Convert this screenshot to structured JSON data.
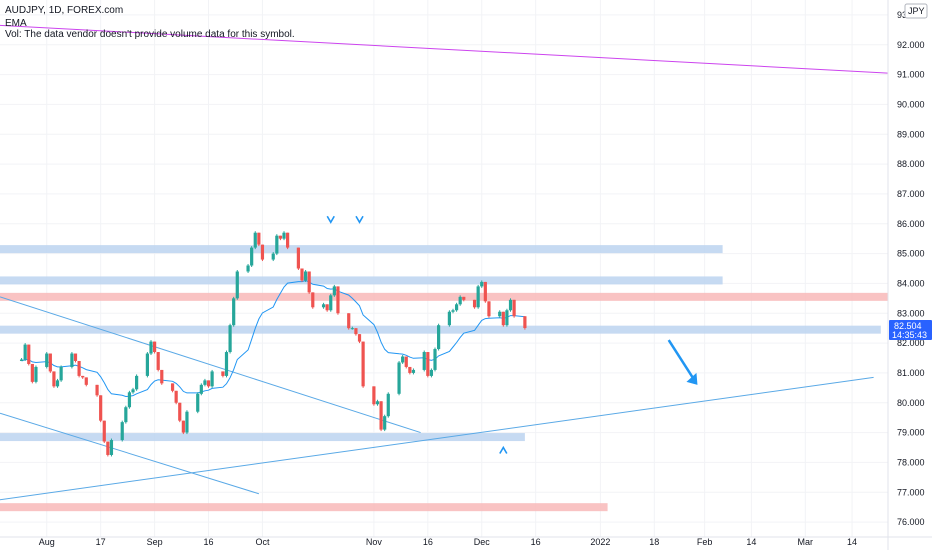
{
  "header": {
    "symbol_line": "AUDJPY, 1D, FOREX.com",
    "indicator": "EMA",
    "volume_note": "Vol: The data vendor doesn't provide volume data for this symbol."
  },
  "price_axis": {
    "currency": "JPY",
    "last_price": "82.504",
    "countdown": "14:35:43"
  },
  "colors": {
    "up": "#26a69a",
    "down": "#ef5350",
    "ema": "#2196f3",
    "trendline": "#5aa9e6",
    "purple_line": "#cc44ee",
    "support_zone": "#bcd4f0",
    "resistance_zone": "#f8b8b8",
    "price_tag": "#2962ff"
  },
  "chart_data": {
    "type": "candlestick",
    "title": "AUDJPY, 1D, FOREX.com",
    "xlabel": "",
    "ylabel": "",
    "ylim": [
      75.5,
      93.5
    ],
    "x_range": [
      "2021-07-20",
      "2022-03-24"
    ],
    "y_ticks": [
      "76.000",
      "77.000",
      "78.000",
      "79.000",
      "80.000",
      "81.000",
      "82.000",
      "83.000",
      "84.000",
      "85.000",
      "86.000",
      "87.000",
      "88.000",
      "89.000",
      "90.000",
      "91.000",
      "92.000",
      "93.000"
    ],
    "x_ticks": [
      {
        "label": "Aug",
        "date": "2021-08-02"
      },
      {
        "label": "17",
        "date": "2021-08-17"
      },
      {
        "label": "Sep",
        "date": "2021-09-01"
      },
      {
        "label": "16",
        "date": "2021-09-16"
      },
      {
        "label": "Oct",
        "date": "2021-10-01"
      },
      {
        "label": "Nov",
        "date": "2021-11-01"
      },
      {
        "label": "16",
        "date": "2021-11-16"
      },
      {
        "label": "Dec",
        "date": "2021-12-01"
      },
      {
        "label": "16",
        "date": "2021-12-16"
      },
      {
        "label": "2022",
        "date": "2022-01-03"
      },
      {
        "label": "18",
        "date": "2022-01-18"
      },
      {
        "label": "Feb",
        "date": "2022-02-01"
      },
      {
        "label": "14",
        "date": "2022-02-14"
      },
      {
        "label": "Mar",
        "date": "2022-03-01"
      },
      {
        "label": "14",
        "date": "2022-03-14"
      }
    ],
    "closes": [
      81.45,
      81.95,
      81.3,
      80.7,
      81.2,
      81.65,
      81.05,
      80.55,
      80.75,
      81.2,
      81.65,
      81.4,
      80.9,
      80.85,
      80.6,
      80.25,
      79.4,
      78.7,
      78.25,
      78.75,
      79.35,
      79.85,
      80.35,
      80.45,
      80.9,
      81.65,
      82.05,
      81.7,
      81.1,
      80.65,
      80.4,
      80.0,
      79.4,
      79.0,
      79.7,
      80.3,
      80.6,
      80.75,
      80.55,
      81.05,
      80.9,
      81.7,
      82.6,
      83.5,
      84.4,
      84.6,
      85.2,
      85.7,
      85.3,
      84.8,
      85.0,
      85.6,
      85.5,
      85.7,
      85.2,
      84.5,
      84.1,
      84.4,
      83.7,
      83.2,
      83.3,
      83.1,
      83.6,
      83.9,
      83.0,
      82.5,
      82.5,
      82.3,
      82.05,
      80.55,
      79.95,
      80.05,
      79.1,
      79.55,
      80.3,
      81.35,
      81.55,
      81.2,
      81.0,
      81.1,
      81.7,
      80.9,
      81.1,
      81.8,
      82.6,
      83.05,
      83.1,
      83.3,
      83.55,
      83.45,
      83.2,
      83.9,
      84.05,
      83.4,
      82.9,
      83.05,
      82.6,
      83.1,
      83.45,
      82.9,
      82.504
    ],
    "highs": [
      81.5,
      82.0,
      81.95,
      81.3,
      81.25,
      81.7,
      81.65,
      81.05,
      80.8,
      81.25,
      81.7,
      81.65,
      81.4,
      80.9,
      80.85,
      80.6,
      80.25,
      79.4,
      78.7,
      78.8,
      79.4,
      79.9,
      80.4,
      80.5,
      80.95,
      81.7,
      82.1,
      82.05,
      81.7,
      81.1,
      80.65,
      80.4,
      80.0,
      79.4,
      79.75,
      80.35,
      80.65,
      80.8,
      80.75,
      81.1,
      81.05,
      81.75,
      82.65,
      83.55,
      84.45,
      84.65,
      85.25,
      85.75,
      85.7,
      85.3,
      85.05,
      85.65,
      85.6,
      85.75,
      85.7,
      85.2,
      84.5,
      84.45,
      84.4,
      83.7,
      83.35,
      83.3,
      83.65,
      83.95,
      83.9,
      83.0,
      82.55,
      82.5,
      82.3,
      82.05,
      80.55,
      80.1,
      80.05,
      79.6,
      80.35,
      81.4,
      81.6,
      81.55,
      81.2,
      81.15,
      81.75,
      81.7,
      81.15,
      81.85,
      82.65,
      83.1,
      83.15,
      83.35,
      83.6,
      83.55,
      83.45,
      83.95,
      84.1,
      84.05,
      83.4,
      83.1,
      83.05,
      83.15,
      83.5,
      83.45,
      82.9
    ],
    "lows": [
      81.4,
      81.4,
      81.25,
      80.65,
      80.65,
      81.15,
      81.0,
      80.5,
      80.5,
      80.7,
      81.15,
      81.35,
      80.85,
      80.8,
      80.55,
      80.2,
      79.35,
      78.65,
      78.2,
      78.2,
      78.7,
      79.3,
      79.8,
      80.3,
      80.4,
      80.85,
      81.6,
      81.65,
      81.05,
      80.6,
      80.35,
      79.95,
      79.35,
      78.95,
      78.95,
      79.65,
      80.25,
      80.55,
      80.5,
      80.5,
      80.85,
      80.85,
      81.65,
      82.55,
      83.45,
      84.35,
      84.55,
      85.15,
      85.25,
      84.75,
      84.75,
      84.95,
      85.45,
      85.45,
      85.15,
      84.45,
      84.05,
      84.05,
      83.65,
      83.15,
      83.15,
      83.05,
      83.05,
      83.55,
      82.95,
      82.45,
      82.45,
      82.25,
      82.0,
      80.5,
      79.9,
      79.9,
      79.05,
      79.05,
      79.5,
      80.25,
      81.3,
      81.15,
      80.95,
      80.95,
      81.05,
      80.85,
      80.85,
      81.05,
      81.75,
      82.55,
      83.0,
      83.05,
      83.25,
      83.4,
      83.15,
      83.15,
      83.85,
      83.35,
      82.85,
      82.85,
      82.55,
      82.55,
      83.05,
      82.85,
      82.45
    ],
    "ema": [
      81.4,
      81.45,
      81.44,
      81.37,
      81.35,
      81.38,
      81.34,
      81.25,
      81.2,
      81.2,
      81.24,
      81.26,
      81.22,
      81.17,
      81.11,
      81.02,
      80.87,
      80.67,
      80.44,
      80.3,
      80.25,
      80.21,
      80.22,
      80.24,
      80.3,
      80.44,
      80.61,
      80.73,
      80.77,
      80.76,
      80.72,
      80.65,
      80.53,
      80.38,
      80.33,
      80.33,
      80.36,
      80.4,
      80.42,
      80.48,
      80.52,
      80.64,
      80.84,
      81.11,
      81.45,
      81.77,
      82.13,
      82.5,
      82.81,
      83.01,
      83.21,
      83.46,
      83.67,
      83.88,
      84.01,
      84.06,
      84.06,
      84.09,
      84.05,
      83.97,
      83.91,
      83.83,
      83.81,
      83.82,
      83.74,
      83.61,
      83.5,
      83.38,
      83.25,
      82.94,
      82.62,
      82.36,
      82.03,
      81.79,
      81.68,
      81.64,
      81.63,
      81.59,
      81.53,
      81.49,
      81.51,
      81.45,
      81.42,
      81.46,
      81.57,
      81.72,
      81.87,
      82.02,
      82.19,
      82.33,
      82.43,
      82.6,
      82.76,
      82.82,
      82.83,
      82.85,
      82.83,
      82.86,
      82.92,
      82.92,
      82.88
    ],
    "horizontal_zones": [
      {
        "kind": "support",
        "y": 85.15,
        "x_start": "2021-07-20",
        "x_end": "2022-02-06"
      },
      {
        "kind": "support",
        "y": 84.1,
        "x_start": "2021-07-20",
        "x_end": "2022-02-06"
      },
      {
        "kind": "resistance",
        "y": 83.55,
        "x_start": "2021-07-20",
        "x_end": "2022-03-24"
      },
      {
        "kind": "support",
        "y": 82.45,
        "x_start": "2021-07-20",
        "x_end": "2022-03-22"
      },
      {
        "kind": "support",
        "y": 78.85,
        "x_start": "2021-07-20",
        "x_end": "2021-12-13"
      },
      {
        "kind": "resistance",
        "y": 76.5,
        "x_start": "2021-07-20",
        "x_end": "2022-01-05"
      }
    ],
    "trendlines": [
      {
        "name": "upper-channel",
        "from": [
          "2021-07-20",
          83.55
        ],
        "to": [
          "2021-11-14",
          79.0
        ]
      },
      {
        "name": "lower-channel",
        "from": [
          "2021-07-20",
          79.65
        ],
        "to": [
          "2021-09-30",
          76.95
        ]
      },
      {
        "name": "rising-support",
        "from": [
          "2021-07-20",
          76.75
        ],
        "to": [
          "2022-03-20",
          80.85
        ]
      },
      {
        "name": "purple-resistance",
        "from": [
          "2021-07-20",
          92.65
        ],
        "to": [
          "2022-03-24",
          91.05
        ]
      }
    ],
    "markers": [
      {
        "type": "chevron-down",
        "date": "2021-10-20",
        "y": 86.15
      },
      {
        "type": "chevron-down",
        "date": "2021-10-28",
        "y": 86.15
      },
      {
        "type": "chevron-up",
        "date": "2021-12-07",
        "y": 78.4
      }
    ],
    "projection_arrow": {
      "from": [
        "2022-01-22",
        82.1
      ],
      "to": [
        "2022-01-30",
        80.6
      ]
    }
  }
}
